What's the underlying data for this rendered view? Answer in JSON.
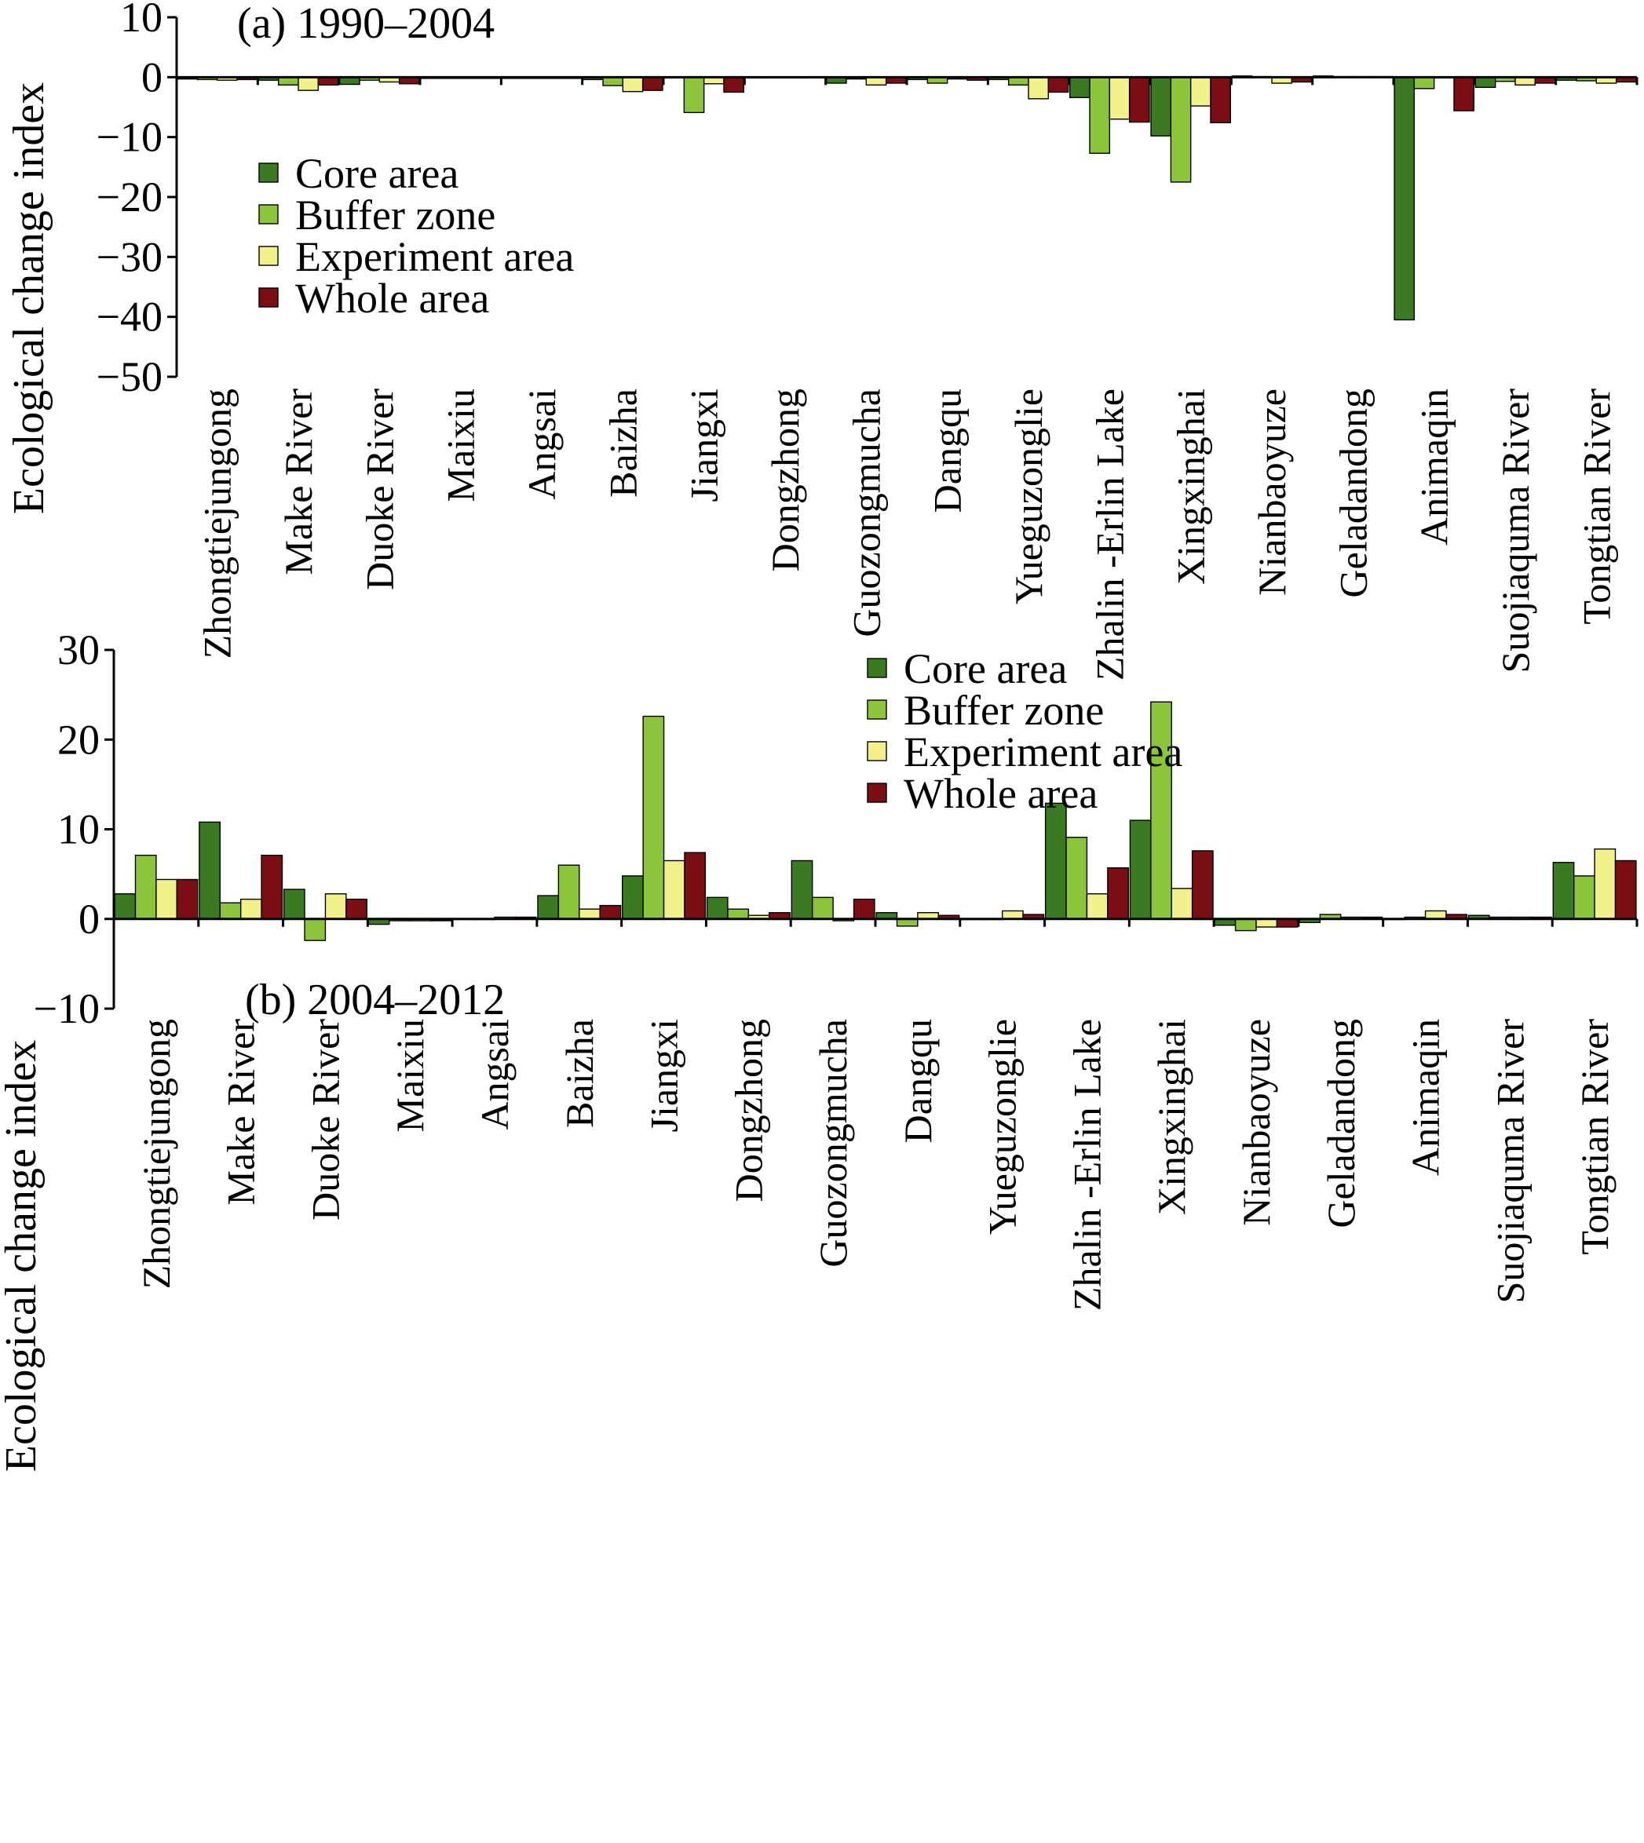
{
  "chart_data": [
    {
      "type": "bar",
      "title": "(a) 1990–2004",
      "ylabel": "Ecological change index",
      "xlabel": "",
      "ylim": [
        -50,
        10
      ],
      "yticks": [
        10,
        0,
        -10,
        -20,
        -30,
        -40,
        -50
      ],
      "ytick_labels": [
        "10",
        "0",
        "−10",
        "−20",
        "−30",
        "−40",
        "−50"
      ],
      "legend_position": "middle-left",
      "categories": [
        "Zhongtiejungong",
        "Make River",
        "Duoke River",
        "Maixiu",
        "Angsai",
        "Baizha",
        "Jiangxi",
        "Dongzhong",
        "Guozongmucha",
        "Dangqu",
        "Yueguzonglie",
        "Zhalin -Erlin Lake",
        "Xingxinghai",
        "Nianbaoyuze",
        "Geladandong",
        "Animaqin",
        "Suojiaquma River",
        "Tongtian River"
      ],
      "series": [
        {
          "name": "Core area",
          "values": [
            -0.3,
            -0.5,
            -1.2,
            -0.2,
            -0.2,
            -0.4,
            0,
            0,
            -1.0,
            -0.4,
            -0.4,
            -3.4,
            -9.8,
            0.2,
            0.2,
            -40.5,
            -1.7,
            -0.5
          ]
        },
        {
          "name": "Buffer zone",
          "values": [
            -0.4,
            -1.3,
            -0.5,
            -0.2,
            -0.2,
            -1.4,
            -5.9,
            0,
            -0.3,
            -1.0,
            -1.3,
            -12.7,
            -17.5,
            0.1,
            0.1,
            -1.9,
            -0.7,
            -0.6
          ]
        },
        {
          "name": "Experiment area",
          "values": [
            -0.5,
            -2.2,
            -0.8,
            -0.2,
            -0.2,
            -2.4,
            -1.1,
            0,
            -1.3,
            -0.3,
            -3.6,
            -7.0,
            -4.8,
            -1.0,
            0.1,
            0,
            -1.3,
            -1.0
          ]
        },
        {
          "name": "Whole area",
          "values": [
            -0.4,
            -1.3,
            -1.1,
            -0.2,
            -0.2,
            -2.2,
            -2.5,
            0,
            -1.0,
            -0.5,
            -2.5,
            -7.5,
            -7.6,
            -0.8,
            0.1,
            -5.6,
            -1.0,
            -0.8
          ]
        }
      ]
    },
    {
      "type": "bar",
      "title": "(b) 2004–2012",
      "ylabel": "Ecological change index",
      "xlabel": "",
      "ylim": [
        -10,
        30
      ],
      "yticks": [
        30,
        20,
        10,
        0,
        -10
      ],
      "ytick_labels": [
        "30",
        "20",
        "10",
        "0",
        "−10"
      ],
      "legend_position": "top-right",
      "categories": [
        "Zhongtiejungong",
        "Make River",
        "Duoke River",
        "Maixiu",
        "Angsai",
        "Baizha",
        "Jiangxi",
        "Dongzhong",
        "Guozongmucha",
        "Dangqu",
        "Yueguzonglie",
        "Zhalin -Erlin Lake",
        "Xingxinghai",
        "Nianbaoyuze",
        "Geladandong",
        "Animaqin",
        "Suojiaquma River",
        "Tongtian River"
      ],
      "series": [
        {
          "name": "Core area",
          "values": [
            2.8,
            10.8,
            3.3,
            -0.6,
            0,
            2.6,
            4.8,
            2.4,
            6.5,
            0.7,
            0,
            12.9,
            11.0,
            -0.7,
            -0.4,
            0,
            0.4,
            6.3
          ]
        },
        {
          "name": "Buffer zone",
          "values": [
            7.1,
            1.8,
            -2.4,
            -0.2,
            0,
            6.0,
            22.6,
            1.1,
            2.4,
            -0.8,
            0,
            9.1,
            24.2,
            -1.3,
            0.5,
            0.2,
            0.2,
            4.8
          ]
        },
        {
          "name": "Experiment area",
          "values": [
            4.4,
            2.2,
            2.8,
            -0.2,
            0.2,
            1.1,
            6.5,
            0.4,
            -0.2,
            0.7,
            0.9,
            2.8,
            3.4,
            -0.9,
            0.2,
            0.9,
            0.2,
            7.8
          ]
        },
        {
          "name": "Whole area",
          "values": [
            4.4,
            7.1,
            2.2,
            -0.2,
            0.2,
            1.5,
            7.4,
            0.7,
            2.2,
            0.4,
            0.5,
            5.7,
            7.6,
            -0.9,
            0.2,
            0.5,
            0.2,
            6.5
          ]
        }
      ]
    }
  ],
  "colors": {
    "core": "#3b7a22",
    "buffer": "#8cc43c",
    "experiment": "#f2f28c",
    "whole": "#7a0e14"
  }
}
